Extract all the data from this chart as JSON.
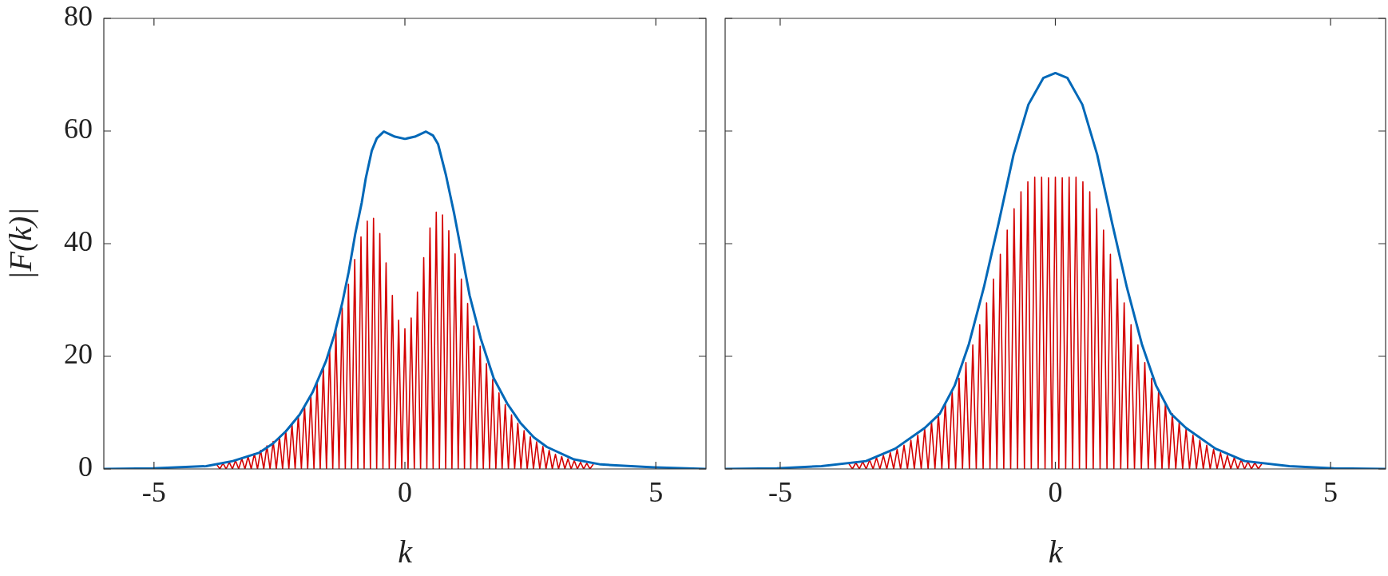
{
  "chart_data": [
    {
      "type": "line",
      "xlabel": "k",
      "ylabel": "|F(k)|",
      "xlim": [
        -6,
        6
      ],
      "xticks": [
        -5,
        0,
        5
      ],
      "ylim": [
        0,
        80
      ],
      "yticks": [
        0,
        20,
        40,
        60,
        80
      ],
      "marker": "none",
      "line_style": "solid",
      "series": [
        {
          "color": "#d40000",
          "x": [
            -3.75,
            -3.6875,
            -3.625,
            -3.5625,
            -3.5,
            -3.4375,
            -3.375,
            -3.3125,
            -3.25,
            -3.1875,
            -3.125,
            -3.0625,
            -3,
            -2.9375,
            -2.875,
            -2.8125,
            -2.75,
            -2.6875,
            -2.625,
            -2.5625,
            -2.5,
            -2.4375,
            -2.375,
            -2.3125,
            -2.25,
            -2.1875,
            -2.125,
            -2.0625,
            -2,
            -1.9375,
            -1.875,
            -1.8125,
            -1.75,
            -1.6875,
            -1.625,
            -1.5625,
            -1.5,
            -1.4375,
            -1.375,
            -1.3125,
            -1.25,
            -1.1875,
            -1.125,
            -1.0625,
            -1,
            -0.9375,
            -0.875,
            -0.8125,
            -0.75,
            -0.6875,
            -0.625,
            -0.5625,
            -0.5,
            -0.4375,
            -0.375,
            -0.3125,
            -0.25,
            -0.1875,
            -0.125,
            -0.0625,
            0,
            0.0625,
            0.125,
            0.1875,
            0.25,
            0.3125,
            0.375,
            0.4375,
            0.5,
            0.5625,
            0.625,
            0.6875,
            0.75,
            0.8125,
            0.875,
            0.9375,
            1,
            1.0625,
            1.125,
            1.1875,
            1.25,
            1.3125,
            1.375,
            1.4375,
            1.5,
            1.5625,
            1.625,
            1.6875,
            1.75,
            1.8125,
            1.875,
            1.9375,
            2,
            2.0625,
            2.125,
            2.1875,
            2.25,
            2.3125,
            2.375,
            2.4375,
            2.5,
            2.5625,
            2.625,
            2.6875,
            2.75,
            2.8125,
            2.875,
            2.9375,
            3,
            3.0625,
            3.125,
            3.1875,
            3.25,
            3.3125,
            3.375,
            3.4375,
            3.5,
            3.5625,
            3.625,
            3.6875,
            3.75
          ],
          "values": [
            0.8,
            0,
            1.0,
            0,
            1.2,
            0,
            1.5,
            0,
            1.8,
            0,
            2.2,
            0,
            2.7,
            0,
            3.3,
            0,
            4.1,
            0,
            4.9,
            0,
            5.7,
            0,
            6.8,
            0,
            8.0,
            0,
            9.5,
            0,
            11.2,
            0,
            13.1,
            0,
            15.5,
            0,
            18.2,
            0,
            21.2,
            0,
            24.7,
            0,
            28.6,
            0,
            32.8,
            0,
            37.2,
            0,
            41.2,
            0,
            44.0,
            0,
            44.5,
            0,
            41.8,
            0,
            36.6,
            0,
            30.8,
            0,
            26.4,
            0,
            24.9,
            0,
            26.8,
            0,
            31.4,
            0,
            37.5,
            0,
            42.8,
            0,
            45.6,
            0,
            45.1,
            0,
            42.3,
            0,
            38.2,
            0,
            33.7,
            0,
            29.4,
            0,
            25.4,
            0,
            21.8,
            0,
            18.7,
            0,
            15.9,
            0,
            13.5,
            0,
            11.4,
            0,
            9.6,
            0,
            8.1,
            0,
            6.8,
            0,
            5.7,
            0,
            4.8,
            0,
            4.0,
            0,
            3.3,
            0,
            2.6,
            0,
            2.2,
            0,
            1.8,
            0,
            1.5,
            0,
            1.2,
            0,
            1.0,
            0,
            0.8
          ]
        },
        {
          "color": "#0068b8",
          "x": [
            -6,
            -5.02,
            -3.96,
            -3.43,
            -2.9,
            -2.63,
            -2.37,
            -2.1,
            -1.84,
            -1.57,
            -1.41,
            -1.25,
            -1.12,
            -0.99,
            -0.86,
            -0.78,
            -0.66,
            -0.56,
            -0.42,
            -0.2,
            0,
            0.2,
            0.42,
            0.56,
            0.66,
            0.82,
            0.98,
            1.14,
            1.29,
            1.51,
            1.77,
            2.04,
            2.3,
            2.57,
            2.83,
            3.37,
            3.9,
            4.96,
            6
          ],
          "values": [
            0,
            0.1,
            0.5,
            1.4,
            2.9,
            4.5,
            6.7,
            9.6,
            13.6,
            19.2,
            23.7,
            29.4,
            35.0,
            41.7,
            47.3,
            51.6,
            56.5,
            58.7,
            59.9,
            59.0,
            58.6,
            59.0,
            59.9,
            59.2,
            57.7,
            52.1,
            45.4,
            37.9,
            30.8,
            23.2,
            16.1,
            11.6,
            8.2,
            5.6,
            3.9,
            1.7,
            0.8,
            0.3,
            0
          ]
        }
      ]
    },
    {
      "type": "line",
      "xlabel": "k",
      "xlim": [
        -6,
        6
      ],
      "xticks": [
        -5,
        0,
        5
      ],
      "ylim": [
        0,
        80
      ],
      "yticks": [
        0,
        20,
        40,
        60,
        80
      ],
      "tick_labels": "x",
      "marker": "none",
      "line_style": "solid",
      "series": [
        {
          "color": "#d40000",
          "x": [
            -3.75,
            -3.6875,
            -3.625,
            -3.5625,
            -3.5,
            -3.4375,
            -3.375,
            -3.3125,
            -3.25,
            -3.1875,
            -3.125,
            -3.0625,
            -3,
            -2.9375,
            -2.875,
            -2.8125,
            -2.75,
            -2.6875,
            -2.625,
            -2.5625,
            -2.5,
            -2.4375,
            -2.375,
            -2.3125,
            -2.25,
            -2.1875,
            -2.125,
            -2.0625,
            -2,
            -1.9375,
            -1.875,
            -1.8125,
            -1.75,
            -1.6875,
            -1.625,
            -1.5625,
            -1.5,
            -1.4375,
            -1.375,
            -1.3125,
            -1.25,
            -1.1875,
            -1.125,
            -1.0625,
            -1,
            -0.9375,
            -0.875,
            -0.8125,
            -0.75,
            -0.6875,
            -0.625,
            -0.5625,
            -0.5,
            -0.4375,
            -0.375,
            -0.3125,
            -0.25,
            -0.1875,
            -0.125,
            -0.0625,
            0,
            0.0625,
            0.125,
            0.1875,
            0.25,
            0.3125,
            0.375,
            0.4375,
            0.5,
            0.5625,
            0.625,
            0.6875,
            0.75,
            0.8125,
            0.875,
            0.9375,
            1,
            1.0625,
            1.125,
            1.1875,
            1.25,
            1.3125,
            1.375,
            1.4375,
            1.5,
            1.5625,
            1.625,
            1.6875,
            1.75,
            1.8125,
            1.875,
            1.9375,
            2,
            2.0625,
            2.125,
            2.1875,
            2.25,
            2.3125,
            2.375,
            2.4375,
            2.5,
            2.5625,
            2.625,
            2.6875,
            2.75,
            2.8125,
            2.875,
            2.9375,
            3,
            3.0625,
            3.125,
            3.1875,
            3.25,
            3.3125,
            3.375,
            3.4375,
            3.5,
            3.5625,
            3.625,
            3.6875,
            3.75
          ],
          "values": [
            0.9,
            0,
            1.1,
            0,
            1.3,
            0,
            1.6,
            0,
            2.0,
            0,
            2.4,
            0,
            2.9,
            0,
            3.5,
            0,
            4.2,
            0,
            5.1,
            0,
            6.0,
            0,
            7.1,
            0,
            8.3,
            0,
            9.8,
            0,
            11.7,
            0,
            13.7,
            0,
            16.1,
            0,
            18.9,
            0,
            22.0,
            0,
            25.6,
            0,
            29.5,
            0,
            33.7,
            0,
            38.1,
            0,
            42.4,
            0,
            46.2,
            0,
            49.2,
            0,
            51.0,
            0,
            51.8,
            0,
            51.8,
            0,
            51.7,
            0,
            51.8,
            0,
            51.7,
            0,
            51.8,
            0,
            51.8,
            0,
            51.0,
            0,
            49.2,
            0,
            46.2,
            0,
            42.4,
            0,
            38.1,
            0,
            33.7,
            0,
            29.5,
            0,
            25.6,
            0,
            22.0,
            0,
            18.9,
            0,
            16.1,
            0,
            13.7,
            0,
            11.7,
            0,
            9.8,
            0,
            8.3,
            0,
            7.1,
            0,
            6.0,
            0,
            5.1,
            0,
            4.2,
            0,
            3.5,
            0,
            2.9,
            0,
            2.4,
            0,
            2.0,
            0,
            1.6,
            0,
            1.3,
            0,
            1.1,
            0,
            0.9
          ]
        },
        {
          "color": "#0068b8",
          "x": [
            -6,
            -5.06,
            -4.25,
            -3.44,
            -2.91,
            -2.37,
            -2.1,
            -1.83,
            -1.57,
            -1.3,
            -1.03,
            -0.76,
            -0.49,
            -0.22,
            0,
            0.22,
            0.49,
            0.76,
            1.03,
            1.3,
            1.57,
            1.83,
            2.1,
            2.37,
            2.91,
            3.44,
            4.25,
            5.06,
            6
          ],
          "values": [
            0,
            0.1,
            0.5,
            1.4,
            3.6,
            7.3,
            9.8,
            14.8,
            22.2,
            32.2,
            43.7,
            55.8,
            64.7,
            69.4,
            70.3,
            69.4,
            64.7,
            55.8,
            43.7,
            32.2,
            22.2,
            14.8,
            9.8,
            7.3,
            3.6,
            1.4,
            0.5,
            0.1,
            0
          ]
        }
      ]
    }
  ]
}
